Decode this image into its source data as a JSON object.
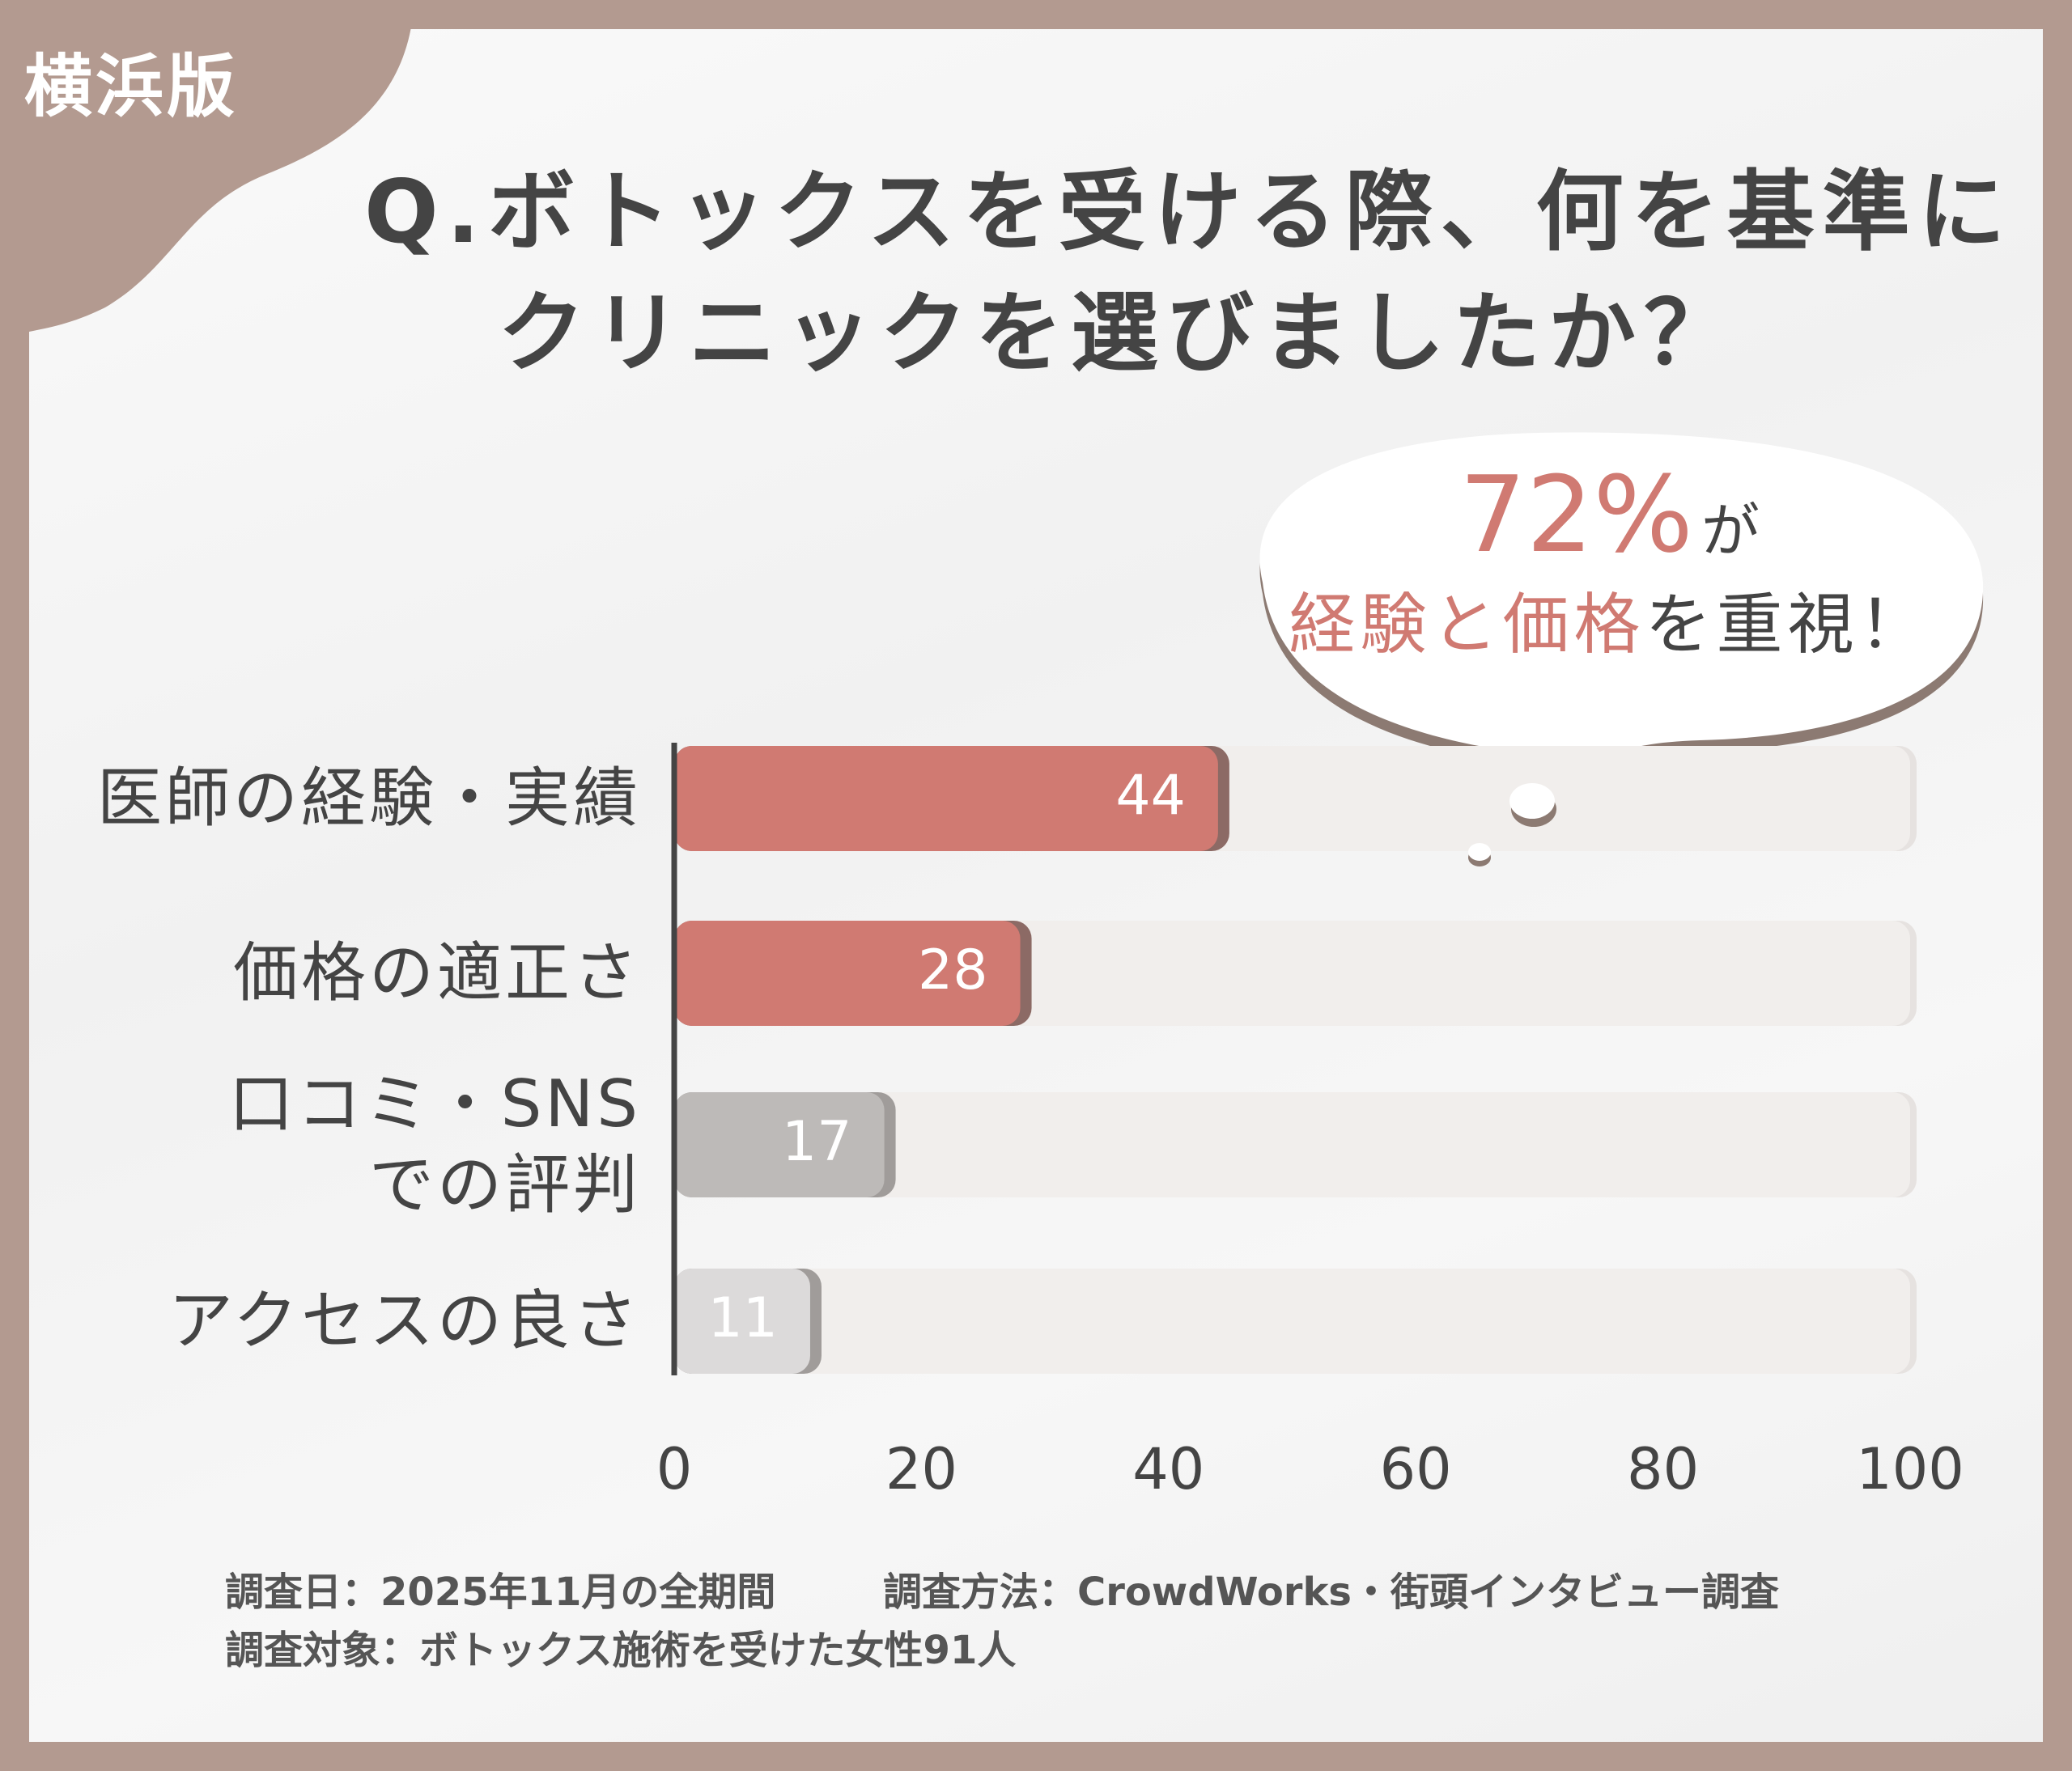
{
  "region_label": "横浜版",
  "title_line1": "Q.ボトックスを受ける際、何を基準に",
  "title_line2": "クリニックを選びましたか？",
  "callout": {
    "percent": "72%",
    "ga": "が",
    "highlight1": "経験",
    "to": "と",
    "highlight2": "価格",
    "rest": "を重視！"
  },
  "chart_data": {
    "type": "bar",
    "orientation": "horizontal",
    "categories": [
      "医師の経験・実績",
      "価格の適正さ",
      "口コミ・SNSでの評判",
      "アクセスの良さ"
    ],
    "category_lines": [
      [
        "医師の経験・実績"
      ],
      [
        "価格の適正さ"
      ],
      [
        "口コミ・SNS",
        "での評判"
      ],
      [
        "アクセスの良さ"
      ]
    ],
    "values": [
      44,
      28,
      17,
      11
    ],
    "xlim": [
      0,
      100
    ],
    "ticks": [
      "0",
      "20",
      "40",
      "60",
      "80",
      "100"
    ],
    "bar_colors": [
      "#d07a72",
      "#d07a72",
      "#bdbab8",
      "#dcdada"
    ],
    "track_color": "#f1eeec",
    "grid": false
  },
  "footnote": {
    "date": "調査日：2025年11月の全期間",
    "method": "調査方法：CrowdWorks・街頭インタビュー調査",
    "target": "調査対象：ボトックス施術を受けた女性91人"
  },
  "colors": {
    "frame": "#b39a90",
    "accent": "#d07a72",
    "text": "#444444"
  }
}
